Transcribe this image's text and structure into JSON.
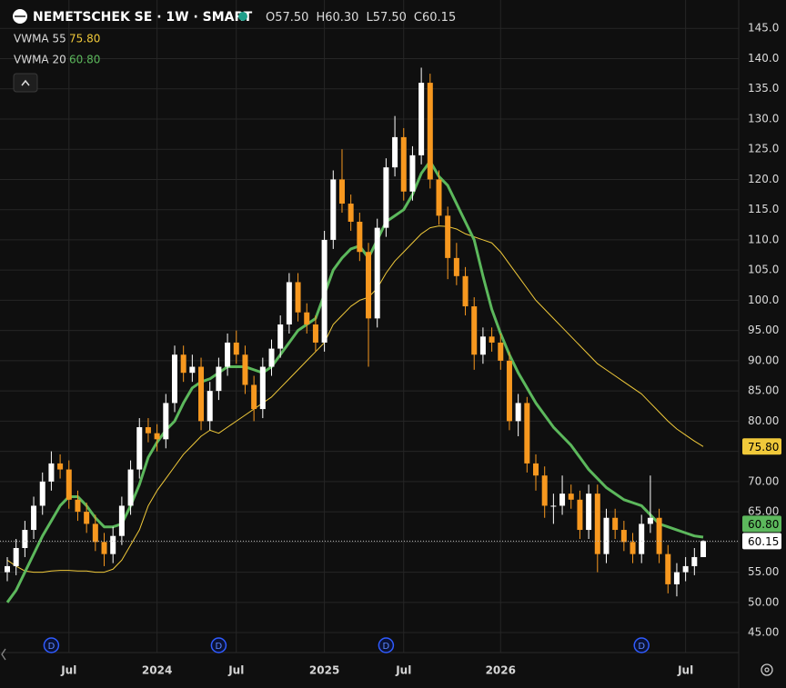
{
  "chart_data": {
    "type": "candlestick",
    "title": "NEMETSCHEK SE · 1W · SMART",
    "ohlc": [
      {
        "label": "O",
        "value": "57.50"
      },
      {
        "label": "H",
        "value": "60.30"
      },
      {
        "label": "L",
        "value": "57.50"
      },
      {
        "label": "C",
        "value": "60.15"
      }
    ],
    "up_color": "#ffffff",
    "down_color": "#f7981f",
    "categories": [
      null,
      null,
      null,
      null,
      null,
      null,
      null,
      "Jul",
      null,
      null,
      null,
      null,
      null,
      null,
      null,
      null,
      null,
      "2024",
      null,
      null,
      null,
      null,
      null,
      null,
      null,
      null,
      "Jul",
      null,
      null,
      null,
      null,
      null,
      null,
      null,
      null,
      null,
      "2025",
      null,
      null,
      null,
      null,
      null,
      null,
      null,
      null,
      "Jul",
      null,
      null,
      null,
      null,
      null,
      null,
      null,
      null,
      null,
      null,
      "2026",
      null,
      null,
      null,
      null,
      null,
      null,
      null,
      null,
      null,
      null,
      null,
      null,
      null,
      null,
      null,
      null,
      null,
      null,
      null,
      null,
      "Jul",
      null,
      null
    ],
    "dividends": [
      null,
      null,
      null,
      null,
      null,
      "D",
      null,
      null,
      null,
      null,
      null,
      null,
      null,
      null,
      null,
      null,
      null,
      null,
      null,
      null,
      null,
      null,
      null,
      null,
      "D",
      null,
      null,
      null,
      null,
      null,
      null,
      null,
      null,
      null,
      null,
      null,
      null,
      null,
      null,
      null,
      null,
      null,
      null,
      "D",
      null,
      null,
      null,
      null,
      null,
      null,
      null,
      null,
      null,
      null,
      null,
      null,
      null,
      null,
      null,
      null,
      null,
      null,
      null,
      null,
      null,
      null,
      null,
      null,
      null,
      null,
      null,
      null,
      "D",
      null,
      null,
      null,
      null,
      null,
      null,
      null
    ],
    "open": [
      55,
      56,
      59,
      62,
      66,
      70,
      73,
      72,
      67,
      65,
      63,
      60,
      58,
      61,
      66,
      72,
      79,
      78,
      77,
      83,
      91,
      88,
      89,
      80,
      85,
      89,
      93,
      91,
      86,
      82,
      89,
      92,
      96,
      103,
      98,
      96,
      93,
      110,
      120,
      116,
      113,
      108,
      97,
      112,
      122,
      127,
      118,
      124,
      136,
      120,
      114,
      107,
      104,
      99,
      91,
      94,
      93,
      90,
      80,
      83,
      73,
      71,
      66,
      66,
      68,
      67,
      62,
      68,
      58,
      64,
      62,
      60,
      58,
      63,
      64,
      58,
      53,
      55,
      56,
      57.5
    ],
    "high": [
      57.5,
      60.5,
      63.5,
      67.5,
      71.5,
      75,
      74.5,
      73.5,
      68.5,
      66.5,
      64.5,
      61.5,
      62.5,
      67.5,
      73.5,
      80.5,
      80.5,
      79.5,
      84.5,
      92.5,
      92.5,
      91,
      90.5,
      86.5,
      90.5,
      94.5,
      95,
      92.5,
      87.5,
      90.5,
      93.5,
      97.5,
      104.5,
      104.5,
      99.5,
      97.5,
      111.5,
      121.5,
      125,
      117.5,
      114.5,
      109.5,
      113.5,
      123.5,
      130.5,
      128.5,
      125.5,
      138.5,
      137.5,
      121.5,
      115.5,
      109.5,
      105.5,
      100.5,
      95.5,
      95.5,
      94.5,
      91.5,
      84.5,
      84,
      74.5,
      72.5,
      68,
      71,
      69.5,
      68.5,
      69.5,
      69.5,
      65.5,
      65.5,
      63.5,
      61.5,
      64.5,
      71,
      65.5,
      59.5,
      56.5,
      57.5,
      59,
      60.3
    ],
    "low": [
      53.5,
      54.5,
      57.5,
      60.5,
      64.5,
      68.5,
      70.5,
      65.5,
      63.5,
      61.5,
      58.5,
      56,
      56.5,
      59.5,
      64.5,
      70.5,
      76.5,
      75,
      75.5,
      81.5,
      86.5,
      86.5,
      78.5,
      78.5,
      83.5,
      87.5,
      89.5,
      84.5,
      80,
      80.5,
      87.5,
      90.5,
      94.5,
      96.5,
      94.5,
      91.5,
      91.5,
      108.5,
      114.5,
      111.5,
      106.5,
      89,
      95.5,
      110.5,
      120.5,
      116.5,
      116.5,
      122.5,
      118.5,
      112.5,
      103.5,
      102.5,
      97.5,
      88.5,
      89.5,
      91.5,
      88.5,
      78.5,
      77.5,
      71.5,
      68.5,
      64,
      63,
      64.5,
      65.5,
      60.5,
      60.5,
      55,
      56.5,
      60.5,
      58.5,
      56.5,
      56.5,
      61.5,
      56.5,
      51.5,
      51,
      53.5,
      54.5,
      57.5
    ],
    "close": [
      56,
      59,
      62,
      66,
      70,
      73,
      72,
      67,
      65,
      63,
      60,
      58,
      61,
      66,
      72,
      79,
      78,
      77,
      83,
      91,
      88,
      89,
      80,
      85,
      89,
      93,
      91,
      86,
      82,
      89,
      92,
      96,
      103,
      98,
      96,
      93,
      110,
      120,
      116,
      113,
      108,
      97,
      112,
      122,
      127,
      118,
      124,
      136,
      120,
      114,
      107,
      104,
      99,
      91,
      94,
      93,
      90,
      80,
      83,
      73,
      71,
      66,
      66,
      68,
      67,
      62,
      68,
      58,
      64,
      62,
      60,
      58,
      63,
      64,
      58,
      53,
      55,
      56,
      57.5,
      60.15
    ],
    "price_label": "60.15",
    "series": [
      {
        "name": "VWMA 55",
        "color": "#f0c93a",
        "width": 1,
        "value_label": "75.80",
        "values": [
          57,
          56,
          55.2,
          55,
          55,
          55.2,
          55.3,
          55.3,
          55.2,
          55.2,
          55,
          55,
          55.5,
          57,
          59.5,
          62,
          66,
          68.5,
          70.5,
          72.5,
          74.5,
          76,
          77.5,
          78.5,
          78,
          79,
          80,
          81,
          82,
          83,
          84,
          85.5,
          87,
          88.5,
          90,
          91.5,
          93,
          96,
          97.5,
          99,
          100,
          100.5,
          102,
          104.5,
          106.5,
          108,
          109.5,
          111,
          112,
          112.3,
          112.2,
          111.8,
          111,
          110.5,
          110,
          109.5,
          108,
          106,
          104,
          102,
          100,
          98.5,
          97,
          95.5,
          94,
          92.5,
          91,
          89.5,
          88.5,
          87.5,
          86.5,
          85.5,
          84.5,
          83,
          81.5,
          80,
          78.7,
          77.7,
          76.7,
          75.8
        ]
      },
      {
        "name": "VWMA 20",
        "color": "#5cb85c",
        "width": 3,
        "value_label": "60.80",
        "values": [
          50,
          52,
          55,
          58,
          61,
          63.5,
          66,
          67.5,
          67.5,
          66,
          64,
          62.5,
          62.5,
          63,
          66,
          69.5,
          74,
          76.5,
          78.5,
          80,
          83,
          85.5,
          86.5,
          87,
          88,
          89,
          89,
          89,
          88.5,
          88,
          89,
          91,
          93,
          95,
          96,
          97,
          101,
          105,
          107,
          108.5,
          109,
          107,
          110,
          113,
          114,
          115,
          117.5,
          121,
          123,
          120.5,
          119,
          116,
          113,
          110,
          104,
          98.5,
          94.5,
          91,
          88,
          85.5,
          83,
          81,
          79,
          77.5,
          76,
          74,
          72,
          70.5,
          69,
          68,
          67,
          66.5,
          66,
          64.5,
          63,
          62.5,
          62,
          61.5,
          61,
          60.8
        ]
      }
    ],
    "ylim": [
      41.7,
      149.7
    ],
    "yticks": [
      {
        "value": 45,
        "label": "45.00"
      },
      {
        "value": 50,
        "label": "50.00"
      },
      {
        "value": 55,
        "label": "55.00"
      },
      {
        "value": 60,
        "label": "60.00"
      },
      {
        "value": 65,
        "label": "65.00"
      },
      {
        "value": 70,
        "label": "70.00"
      },
      {
        "value": 75,
        "label": "75.00"
      },
      {
        "value": 80,
        "label": "80.00"
      },
      {
        "value": 85,
        "label": "85.00"
      },
      {
        "value": 90,
        "label": "90.00"
      },
      {
        "value": 95,
        "label": "95.00"
      },
      {
        "value": 100,
        "label": "100.0"
      },
      {
        "value": 105,
        "label": "105.0"
      },
      {
        "value": 110,
        "label": "110.0"
      },
      {
        "value": 115,
        "label": "115.0"
      },
      {
        "value": 120,
        "label": "120.0"
      },
      {
        "value": 125,
        "label": "125.0"
      },
      {
        "value": 130,
        "label": "130.0"
      },
      {
        "value": 135,
        "label": "135.0"
      },
      {
        "value": 140,
        "label": "140.0"
      },
      {
        "value": 145,
        "label": "145.0"
      }
    ],
    "grid": true
  }
}
